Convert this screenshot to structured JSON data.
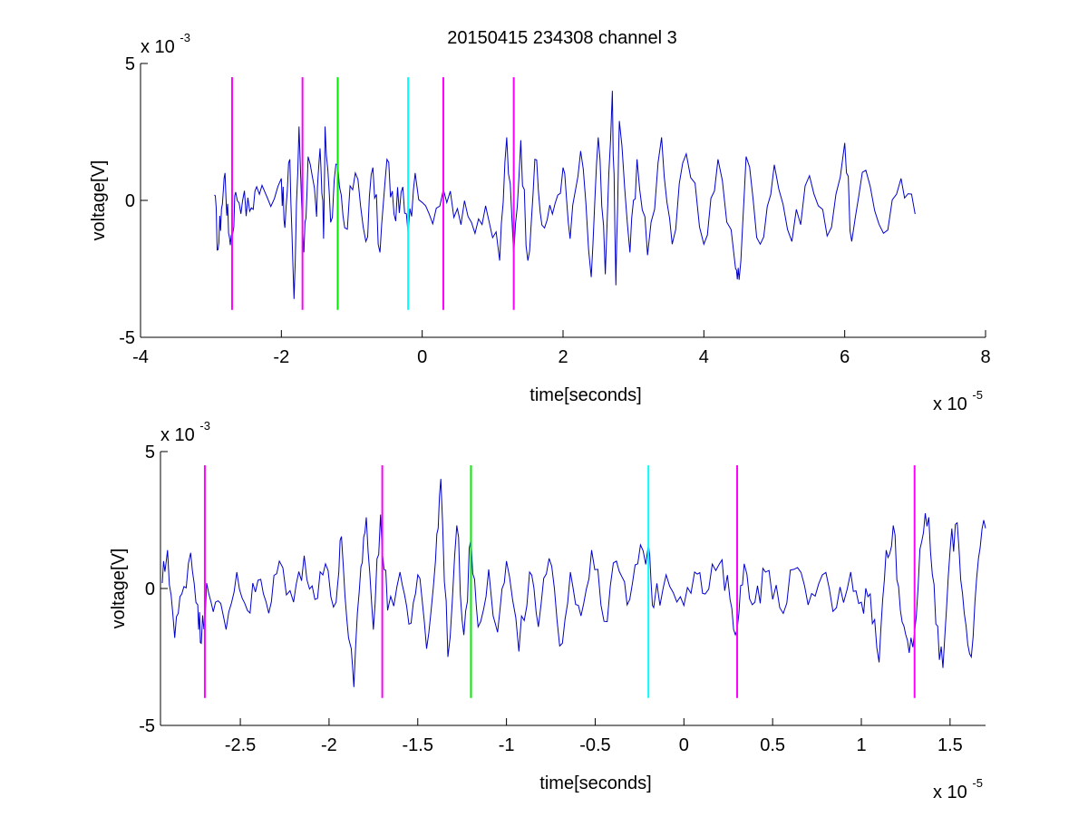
{
  "figure": {
    "title": "20150415 234308 channel 3"
  },
  "chart_data": [
    {
      "type": "line",
      "xlabel": "time[seconds]",
      "ylabel": "voltage[V]",
      "xlim": [
        -4,
        8
      ],
      "ylim": [
        -5,
        5
      ],
      "x_ticks": [
        -4,
        -2,
        0,
        2,
        4,
        6,
        8
      ],
      "x_tick_labels": [
        "-4",
        "-2",
        "0",
        "2",
        "4",
        "6",
        "8"
      ],
      "y_ticks": [
        -5,
        0,
        5
      ],
      "y_tick_labels": [
        "-5",
        "0",
        "5"
      ],
      "x_exponent": "x 10",
      "x_exponent_power": "-5",
      "y_exponent": "x 10",
      "y_exponent_power": "-3",
      "grid": false,
      "legend": "none",
      "trace": {
        "color": "#0000cc",
        "x_range": [
          -2.95,
          7.0
        ],
        "y_extremes": [
          -3.6,
          4.0
        ],
        "points": [
          [
            -2.95,
            0.2
          ],
          [
            -2.9,
            -1.8
          ],
          [
            -2.85,
            -0.3
          ],
          [
            -2.8,
            1.0
          ],
          [
            -2.75,
            -1.2
          ],
          [
            -2.7,
            -1.3
          ],
          [
            -2.65,
            0.3
          ],
          [
            -2.55,
            0.0
          ],
          [
            -2.45,
            -0.4
          ],
          [
            -2.35,
            0.5
          ],
          [
            -2.2,
            0.1
          ],
          [
            -2.0,
            0.8
          ],
          [
            -1.95,
            -1.0
          ],
          [
            -1.88,
            1.5
          ],
          [
            -1.82,
            -3.6
          ],
          [
            -1.75,
            2.7
          ],
          [
            -1.68,
            -1.9
          ],
          [
            -1.62,
            1.6
          ],
          [
            -1.5,
            -0.6
          ],
          [
            -1.45,
            1.9
          ],
          [
            -1.4,
            -1.4
          ],
          [
            -1.38,
            2.7
          ],
          [
            -1.3,
            -0.8
          ],
          [
            -1.2,
            1.3
          ],
          [
            -1.1,
            -1.0
          ],
          [
            -0.95,
            1.0
          ],
          [
            -0.8,
            -1.5
          ],
          [
            -0.7,
            1.2
          ],
          [
            -0.6,
            -1.9
          ],
          [
            -0.5,
            1.5
          ],
          [
            -0.4,
            -0.5
          ],
          [
            -0.3,
            0.3
          ],
          [
            -0.2,
            -1.2
          ],
          [
            -0.1,
            1.0
          ],
          [
            0.1,
            -0.5
          ],
          [
            0.3,
            0.4
          ],
          [
            0.5,
            -0.3
          ],
          [
            0.7,
            -0.8
          ],
          [
            0.9,
            -0.2
          ],
          [
            1.1,
            -2.2
          ],
          [
            1.2,
            2.3
          ],
          [
            1.3,
            -2.0
          ],
          [
            1.4,
            2.2
          ],
          [
            1.5,
            -2.2
          ],
          [
            1.6,
            1.5
          ],
          [
            1.7,
            -0.9
          ],
          [
            1.85,
            -0.5
          ],
          [
            2.0,
            1.2
          ],
          [
            2.1,
            -1.4
          ],
          [
            2.25,
            1.8
          ],
          [
            2.4,
            -2.8
          ],
          [
            2.5,
            2.3
          ],
          [
            2.6,
            -2.7
          ],
          [
            2.7,
            4.0
          ],
          [
            2.75,
            -3.1
          ],
          [
            2.8,
            2.9
          ],
          [
            2.95,
            -1.9
          ],
          [
            3.05,
            1.5
          ],
          [
            3.2,
            -2.0
          ],
          [
            3.4,
            2.3
          ],
          [
            3.55,
            -1.6
          ],
          [
            3.75,
            1.7
          ],
          [
            4.0,
            -1.6
          ],
          [
            4.2,
            1.5
          ],
          [
            4.45,
            -2.5
          ],
          [
            4.5,
            -2.9
          ],
          [
            4.6,
            1.6
          ],
          [
            4.8,
            -1.6
          ],
          [
            5.0,
            1.3
          ],
          [
            5.25,
            -1.5
          ],
          [
            5.5,
            0.9
          ],
          [
            5.75,
            -1.3
          ],
          [
            6.0,
            2.1
          ],
          [
            6.1,
            -1.5
          ],
          [
            6.3,
            1.1
          ],
          [
            6.55,
            -1.2
          ],
          [
            6.8,
            0.8
          ],
          [
            7.0,
            -0.5
          ]
        ]
      },
      "markers": [
        {
          "x": -2.7,
          "y_range": [
            -4,
            4.5
          ],
          "color": "#ff00ff"
        },
        {
          "x": -1.7,
          "y_range": [
            -4,
            4.5
          ],
          "color": "#ff00ff"
        },
        {
          "x": -1.2,
          "y_range": [
            -4,
            4.5
          ],
          "color": "#00ee00"
        },
        {
          "x": -0.2,
          "y_range": [
            -4,
            4.5
          ],
          "color": "#00ffff"
        },
        {
          "x": 0.3,
          "y_range": [
            -4,
            4.5
          ],
          "color": "#ff00ff"
        },
        {
          "x": 1.3,
          "y_range": [
            -4,
            4.5
          ],
          "color": "#ff00ff"
        }
      ]
    },
    {
      "type": "line",
      "xlabel": "time[seconds]",
      "ylabel": "voltage[V]",
      "xlim": [
        -2.95,
        1.7
      ],
      "ylim": [
        -5,
        5
      ],
      "x_ticks": [
        -3,
        -2.5,
        -2,
        -1.5,
        -1,
        -0.5,
        0,
        0.5,
        1,
        1.5
      ],
      "x_tick_labels": [
        "-3",
        "-2.5",
        "-2",
        "-1.5",
        "-1",
        "-0.5",
        "0",
        "0.5",
        "1",
        "1.5"
      ],
      "y_ticks": [
        -5,
        0,
        5
      ],
      "y_tick_labels": [
        "-5",
        "0",
        "5"
      ],
      "x_exponent": "x 10",
      "x_exponent_power": "-5",
      "y_exponent": "x 10",
      "y_exponent_power": "-3",
      "grid": false,
      "legend": "none",
      "trace": {
        "color": "#0000cc",
        "x_range": [
          -2.94,
          1.7
        ],
        "y_extremes": [
          -3.6,
          4.0
        ],
        "points": [
          [
            -2.94,
            0.2
          ],
          [
            -2.91,
            1.4
          ],
          [
            -2.87,
            -1.8
          ],
          [
            -2.83,
            -0.2
          ],
          [
            -2.78,
            1.3
          ],
          [
            -2.74,
            -0.6
          ],
          [
            -2.72,
            -2.0
          ],
          [
            -2.69,
            0.2
          ],
          [
            -2.64,
            -0.5
          ],
          [
            -2.58,
            -1.5
          ],
          [
            -2.52,
            0.6
          ],
          [
            -2.46,
            -0.8
          ],
          [
            -2.4,
            0.3
          ],
          [
            -2.34,
            -0.9
          ],
          [
            -2.28,
            1.0
          ],
          [
            -2.2,
            -0.5
          ],
          [
            -2.14,
            1.2
          ],
          [
            -2.08,
            -0.4
          ],
          [
            -2.02,
            0.9
          ],
          [
            -1.96,
            -0.5
          ],
          [
            -1.93,
            1.9
          ],
          [
            -1.89,
            -1.8
          ],
          [
            -1.86,
            -3.6
          ],
          [
            -1.82,
            0.8
          ],
          [
            -1.79,
            2.6
          ],
          [
            -1.75,
            -1.5
          ],
          [
            -1.71,
            2.7
          ],
          [
            -1.67,
            -0.8
          ],
          [
            -1.6,
            0.6
          ],
          [
            -1.55,
            -1.3
          ],
          [
            -1.5,
            0.5
          ],
          [
            -1.45,
            -2.2
          ],
          [
            -1.4,
            1.0
          ],
          [
            -1.37,
            4.0
          ],
          [
            -1.33,
            -2.5
          ],
          [
            -1.28,
            2.3
          ],
          [
            -1.24,
            -1.7
          ],
          [
            -1.2,
            1.8
          ],
          [
            -1.16,
            -1.4
          ],
          [
            -1.1,
            0.7
          ],
          [
            -1.05,
            -1.6
          ],
          [
            -1.0,
            1.0
          ],
          [
            -0.93,
            -2.3
          ],
          [
            -0.87,
            0.6
          ],
          [
            -0.82,
            -1.4
          ],
          [
            -0.76,
            1.1
          ],
          [
            -0.7,
            -2.1
          ],
          [
            -0.64,
            0.6
          ],
          [
            -0.58,
            -1.0
          ],
          [
            -0.52,
            1.4
          ],
          [
            -0.45,
            -1.2
          ],
          [
            -0.38,
            1.0
          ],
          [
            -0.32,
            -0.6
          ],
          [
            -0.26,
            0.9
          ],
          [
            -0.2,
            1.6
          ],
          [
            -0.17,
            -0.7
          ],
          [
            -0.1,
            0.5
          ],
          [
            -0.02,
            -0.3
          ],
          [
            0.06,
            0.6
          ],
          [
            0.12,
            -0.2
          ],
          [
            0.2,
            0.9
          ],
          [
            0.26,
            -0.4
          ],
          [
            0.3,
            -1.5
          ],
          [
            0.34,
            0.9
          ],
          [
            0.4,
            -0.5
          ],
          [
            0.46,
            0.6
          ],
          [
            0.54,
            -0.7
          ],
          [
            0.62,
            0.7
          ],
          [
            0.7,
            -0.6
          ],
          [
            0.78,
            0.5
          ],
          [
            0.86,
            -0.7
          ],
          [
            0.94,
            0.6
          ],
          [
            1.0,
            -0.5
          ],
          [
            1.05,
            -0.2
          ],
          [
            1.1,
            -2.7
          ],
          [
            1.14,
            1.4
          ],
          [
            1.18,
            2.3
          ],
          [
            1.22,
            -0.8
          ],
          [
            1.26,
            -1.9
          ],
          [
            1.3,
            -1.6
          ],
          [
            1.34,
            1.7
          ],
          [
            1.38,
            2.6
          ],
          [
            1.42,
            -1.3
          ],
          [
            1.46,
            -2.9
          ],
          [
            1.5,
            1.4
          ],
          [
            1.54,
            2.4
          ],
          [
            1.58,
            -0.9
          ],
          [
            1.62,
            -2.5
          ],
          [
            1.66,
            1.1
          ],
          [
            1.7,
            2.2
          ]
        ]
      },
      "markers": [
        {
          "x": -2.7,
          "y_range": [
            -4,
            4.5
          ],
          "color": "#ff00ff"
        },
        {
          "x": -1.7,
          "y_range": [
            -4,
            4.5
          ],
          "color": "#ff00ff"
        },
        {
          "x": -1.2,
          "y_range": [
            -4,
            4.5
          ],
          "color": "#00ee00"
        },
        {
          "x": -0.2,
          "y_range": [
            -4,
            4.5
          ],
          "color": "#00ffff"
        },
        {
          "x": 0.3,
          "y_range": [
            -4,
            4.5
          ],
          "color": "#ff00ff"
        },
        {
          "x": 1.3,
          "y_range": [
            -4,
            4.5
          ],
          "color": "#ff00ff"
        }
      ]
    }
  ]
}
